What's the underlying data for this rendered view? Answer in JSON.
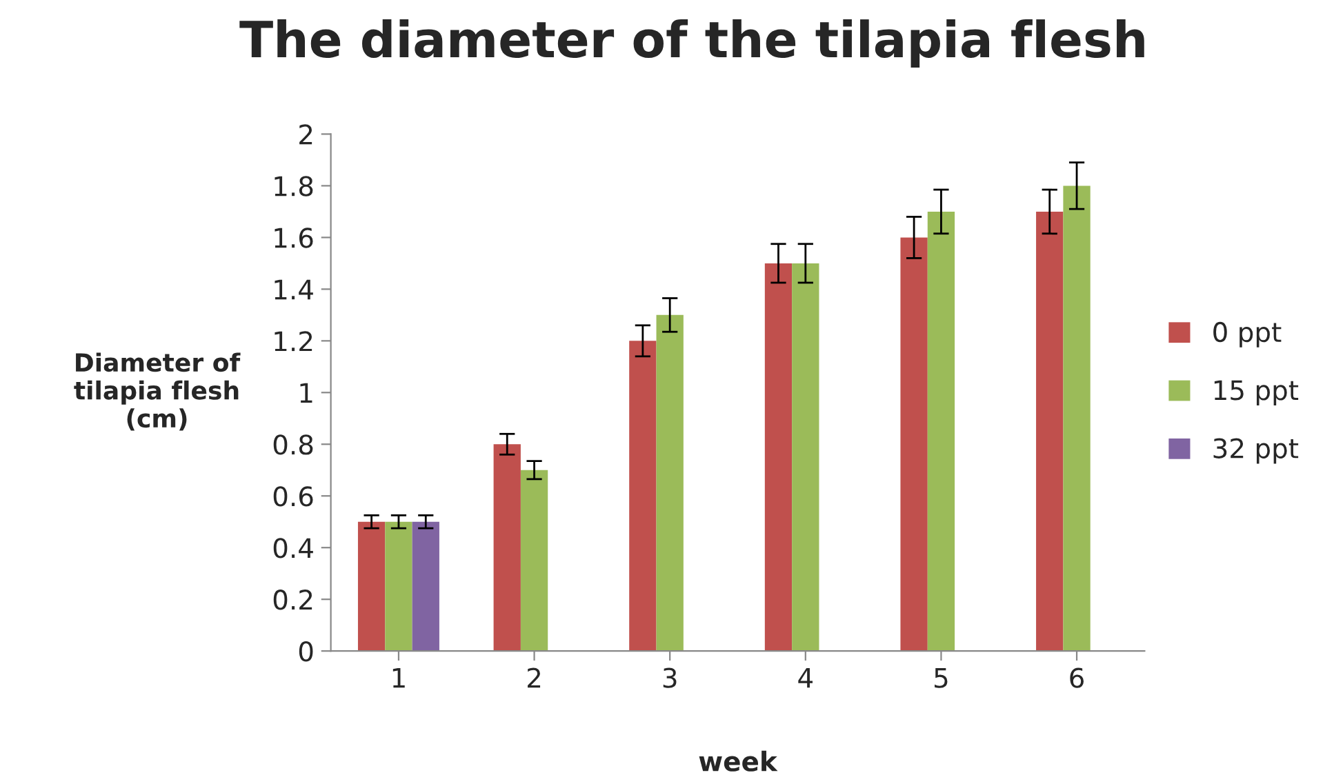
{
  "chart_data": {
    "type": "bar",
    "title": "The diameter of the tilapia flesh",
    "xlabel": "week",
    "ylabel": "Diameter of\ntilapia flesh\n(cm)",
    "categories": [
      "1",
      "2",
      "3",
      "4",
      "5",
      "6"
    ],
    "series": [
      {
        "name": "0 ppt",
        "color": "#c0504d",
        "values": [
          0.5,
          0.8,
          1.2,
          1.5,
          1.6,
          1.7
        ],
        "errors": [
          0.025,
          0.04,
          0.06,
          0.075,
          0.08,
          0.085
        ]
      },
      {
        "name": "15 ppt",
        "color": "#9bbb59",
        "values": [
          0.5,
          0.7,
          1.3,
          1.5,
          1.7,
          1.8
        ],
        "errors": [
          0.025,
          0.035,
          0.065,
          0.075,
          0.085,
          0.09
        ]
      },
      {
        "name": "32 ppt",
        "color": "#8064a2",
        "values": [
          0.5,
          null,
          null,
          null,
          null,
          null
        ],
        "errors": [
          0.025,
          null,
          null,
          null,
          null,
          null
        ]
      }
    ],
    "ylim": [
      0,
      2
    ],
    "yticks": [
      0,
      0.2,
      0.4,
      0.6,
      0.8,
      1,
      1.2,
      1.4,
      1.6,
      1.8,
      2
    ],
    "grid": false,
    "legend": "right"
  }
}
